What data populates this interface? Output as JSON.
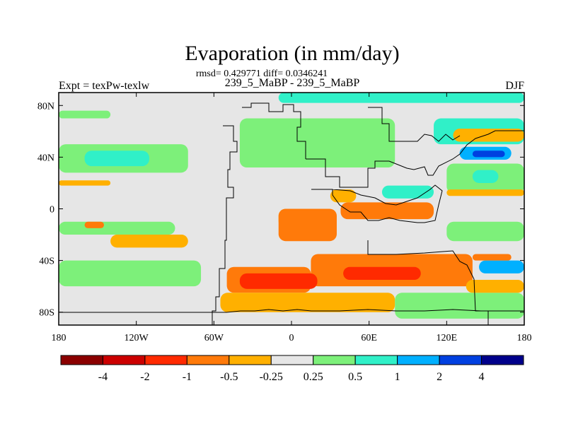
{
  "chart_data": {
    "type": "heatmap",
    "title": "Evaporation (in mm/day)",
    "stats_line": "rmsd= 0.429771 diff= 0.0346241",
    "subtitle": "239_5_MaBP - 239_5_MaBP",
    "left_label": "Expt = texPw-texlw",
    "right_label": "DJF",
    "x_ticks": [
      {
        "value": -180,
        "label": "180"
      },
      {
        "value": -120,
        "label": "120W"
      },
      {
        "value": -60,
        "label": "60W"
      },
      {
        "value": 0,
        "label": "0"
      },
      {
        "value": 60,
        "label": "60E"
      },
      {
        "value": 120,
        "label": "120E"
      },
      {
        "value": 180,
        "label": "180"
      }
    ],
    "y_ticks": [
      {
        "value": 80,
        "label": "80N"
      },
      {
        "value": 40,
        "label": "40N"
      },
      {
        "value": 0,
        "label": "0"
      },
      {
        "value": -40,
        "label": "40S"
      },
      {
        "value": -80,
        "label": "80S"
      }
    ],
    "xlim": [
      -180,
      180
    ],
    "ylim": [
      -90,
      90
    ],
    "levels": [
      "-4",
      "-2",
      "-1",
      "-0.5",
      "-0.25",
      "0.25",
      "0.5",
      "1",
      "2",
      "4"
    ],
    "bins": [
      {
        "color": "#8b0000",
        "label": "< -4"
      },
      {
        "color": "#cc0000",
        "label": "-4 to -2"
      },
      {
        "color": "#ff2a00",
        "label": "-2 to -1"
      },
      {
        "color": "#ff7a0a",
        "label": "-1 to -0.5"
      },
      {
        "color": "#ffb000",
        "label": "-0.5 to -0.25"
      },
      {
        "color": "#e6e6e6",
        "label": "-0.25 to 0.25"
      },
      {
        "color": "#7df07a",
        "label": "0.25 to 0.5"
      },
      {
        "color": "#30f0c8",
        "label": "0.5 to 1"
      },
      {
        "color": "#00b0ff",
        "label": "1 to 2"
      },
      {
        "color": "#0040e0",
        "label": "2 to 4"
      },
      {
        "color": "#00008b",
        "label": "> 4"
      }
    ],
    "fields": [
      {
        "bin": 5,
        "lon": [
          -180,
          180
        ],
        "lat": [
          -90,
          90
        ]
      },
      {
        "bin": 7,
        "lon": [
          -10,
          180
        ],
        "lat": [
          82,
          90
        ]
      },
      {
        "bin": 6,
        "lon": [
          -180,
          -140
        ],
        "lat": [
          70,
          76
        ]
      },
      {
        "bin": 4,
        "lon": [
          -180,
          -140
        ],
        "lat": [
          18,
          22
        ]
      },
      {
        "bin": 6,
        "lon": [
          -180,
          -80
        ],
        "lat": [
          28,
          50
        ]
      },
      {
        "bin": 7,
        "lon": [
          -160,
          -110
        ],
        "lat": [
          33,
          45
        ]
      },
      {
        "bin": 6,
        "lon": [
          -180,
          -90
        ],
        "lat": [
          -20,
          -10
        ]
      },
      {
        "bin": 3,
        "lon": [
          -160,
          -145
        ],
        "lat": [
          -15,
          -10
        ]
      },
      {
        "bin": 4,
        "lon": [
          -140,
          -80
        ],
        "lat": [
          -30,
          -20
        ]
      },
      {
        "bin": 6,
        "lon": [
          -180,
          -70
        ],
        "lat": [
          -60,
          -40
        ]
      },
      {
        "bin": 6,
        "lon": [
          -40,
          80
        ],
        "lat": [
          32,
          70
        ]
      },
      {
        "bin": 7,
        "lon": [
          110,
          180
        ],
        "lat": [
          50,
          70
        ]
      },
      {
        "bin": 4,
        "lon": [
          125,
          180
        ],
        "lat": [
          52,
          62
        ]
      },
      {
        "bin": 8,
        "lon": [
          130,
          170
        ],
        "lat": [
          38,
          48
        ]
      },
      {
        "bin": 9,
        "lon": [
          140,
          165
        ],
        "lat": [
          40,
          45
        ]
      },
      {
        "bin": 6,
        "lon": [
          120,
          180
        ],
        "lat": [
          12,
          35
        ]
      },
      {
        "bin": 7,
        "lon": [
          140,
          160
        ],
        "lat": [
          20,
          30
        ]
      },
      {
        "bin": 4,
        "lon": [
          120,
          180
        ],
        "lat": [
          10,
          15
        ]
      },
      {
        "bin": 6,
        "lon": [
          120,
          180
        ],
        "lat": [
          -25,
          -10
        ]
      },
      {
        "bin": 4,
        "lon": [
          30,
          50
        ],
        "lat": [
          5,
          15
        ]
      },
      {
        "bin": 3,
        "lon": [
          38,
          110
        ],
        "lat": [
          -8,
          5
        ]
      },
      {
        "bin": 7,
        "lon": [
          70,
          110
        ],
        "lat": [
          8,
          18
        ]
      },
      {
        "bin": 4,
        "lon": [
          -10,
          20
        ],
        "lat": [
          -15,
          0
        ]
      },
      {
        "bin": 3,
        "lon": [
          -10,
          35
        ],
        "lat": [
          -25,
          0
        ]
      },
      {
        "bin": 3,
        "lon": [
          15,
          140
        ],
        "lat": [
          -60,
          -35
        ]
      },
      {
        "bin": 2,
        "lon": [
          40,
          100
        ],
        "lat": [
          -55,
          -45
        ]
      },
      {
        "bin": 3,
        "lon": [
          -50,
          15
        ],
        "lat": [
          -65,
          -45
        ]
      },
      {
        "bin": 2,
        "lon": [
          -40,
          20
        ],
        "lat": [
          -62,
          -50
        ]
      },
      {
        "bin": 4,
        "lon": [
          -55,
          80
        ],
        "lat": [
          -80,
          -65
        ]
      },
      {
        "bin": 6,
        "lon": [
          80,
          180
        ],
        "lat": [
          -85,
          -65
        ]
      },
      {
        "bin": 8,
        "lon": [
          145,
          180
        ],
        "lat": [
          -50,
          -40
        ]
      },
      {
        "bin": 3,
        "lon": [
          140,
          170
        ],
        "lat": [
          -40,
          -35
        ]
      },
      {
        "bin": 4,
        "lon": [
          135,
          180
        ],
        "lat": [
          -65,
          -55
        ]
      }
    ]
  }
}
